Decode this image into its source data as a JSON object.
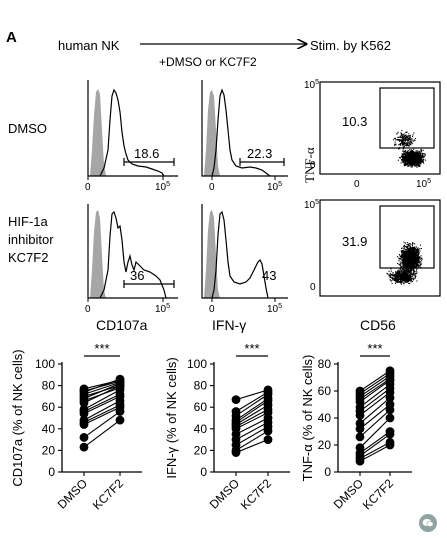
{
  "panel_label": "A",
  "workflow": {
    "cells": "human NK",
    "treatment": "+DMSO or KC7F2",
    "stim": "Stim. by K562"
  },
  "rows": {
    "dmso": [
      "DMSO"
    ],
    "inhibitor": [
      "HIF-1a",
      "inhibitor",
      "KC7F2"
    ]
  },
  "flow": {
    "cd107a_dmso": "18.6",
    "ifng_dmso": "22.3",
    "tnf_dmso": "10.3",
    "cd107a_kc7f2": "36",
    "ifng_kc7f2": "43",
    "tnf_kc7f2": "31.9",
    "axis_zero": "0",
    "axis_max": "10",
    "axis_exp": "5"
  },
  "flow_axes": {
    "cd107a": "CD107a",
    "ifng": "IFN-γ",
    "cd56": "CD56",
    "tnf": "TNF-α"
  },
  "sig": "***",
  "chart_data": [
    {
      "type": "scatter",
      "ylabel": "CD107a (% of NK cells)",
      "categories": [
        "DMSO",
        "KC7F2"
      ],
      "ylim": [
        0,
        100
      ],
      "yticks": [
        0,
        20,
        40,
        60,
        80,
        100
      ],
      "significance": "***",
      "pairs": [
        [
          77,
          85
        ],
        [
          75,
          84
        ],
        [
          74,
          86
        ],
        [
          72,
          83
        ],
        [
          70,
          80
        ],
        [
          68,
          82
        ],
        [
          66,
          78
        ],
        [
          64,
          80
        ],
        [
          58,
          76
        ],
        [
          56,
          72
        ],
        [
          54,
          70
        ],
        [
          48,
          66
        ],
        [
          46,
          62
        ],
        [
          44,
          60
        ],
        [
          32,
          56
        ],
        [
          23,
          48
        ]
      ]
    },
    {
      "type": "scatter",
      "ylabel": "IFN-γ (% of NK cells)",
      "categories": [
        "DMSO",
        "KC7F2"
      ],
      "ylim": [
        0,
        100
      ],
      "yticks": [
        0,
        20,
        40,
        60,
        80,
        100
      ],
      "significance": "***",
      "pairs": [
        [
          67,
          76
        ],
        [
          56,
          74
        ],
        [
          52,
          72
        ],
        [
          48,
          68
        ],
        [
          46,
          66
        ],
        [
          44,
          62
        ],
        [
          42,
          58
        ],
        [
          40,
          55
        ],
        [
          35,
          50
        ],
        [
          30,
          46
        ],
        [
          25,
          42
        ],
        [
          20,
          38
        ],
        [
          18,
          30
        ]
      ]
    },
    {
      "type": "scatter",
      "ylabel": "TNF-α (% of NK cells)",
      "categories": [
        "DMSO",
        "KC7F2"
      ],
      "ylim": [
        0,
        80
      ],
      "yticks": [
        0,
        20,
        40,
        60,
        80
      ],
      "significance": "***",
      "pairs": [
        [
          60,
          75
        ],
        [
          58,
          73
        ],
        [
          56,
          71
        ],
        [
          54,
          69
        ],
        [
          52,
          68
        ],
        [
          48,
          65
        ],
        [
          45,
          62
        ],
        [
          42,
          59
        ],
        [
          36,
          55
        ],
        [
          32,
          50
        ],
        [
          26,
          46
        ],
        [
          18,
          40
        ],
        [
          14,
          30
        ],
        [
          12,
          28
        ],
        [
          10,
          22
        ],
        [
          8,
          20
        ]
      ]
    }
  ]
}
